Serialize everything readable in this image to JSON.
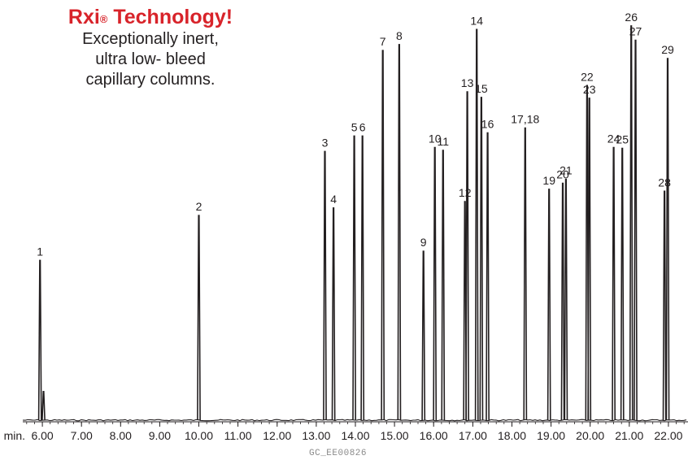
{
  "header": {
    "brand": "Rxi",
    "brand_mark": "®",
    "brand_suffix": " Technology!",
    "tagline_lines": [
      "Exceptionally inert,",
      "ultra low- bleed",
      "capillary columns."
    ]
  },
  "footer": {
    "code": "GC_EE00826"
  },
  "colors": {
    "brand": "#d8232a",
    "trace": "#231f20"
  },
  "chart_data": {
    "type": "line",
    "title": "",
    "xlabel": "",
    "ylabel": "",
    "x_unit_label": "min.",
    "xlim": [
      5.5,
      22.5
    ],
    "ylim": [
      0,
      100
    ],
    "x_ticks": [
      6.0,
      7.0,
      8.0,
      9.0,
      10.0,
      11.0,
      12.0,
      13.0,
      14.0,
      15.0,
      16.0,
      17.0,
      18.0,
      19.0,
      20.0,
      21.0,
      22.0
    ],
    "x_tick_labels": [
      "6.00",
      "7.00",
      "8.00",
      "9.00",
      "10.00",
      "11.00",
      "12.00",
      "13.00",
      "14.00",
      "15.00",
      "16.00",
      "17.00",
      "18.00",
      "19.00",
      "20.00",
      "21.00",
      "22.00"
    ],
    "grid": false,
    "series": [
      {
        "peaks": [
          {
            "label": "1",
            "x": 5.94,
            "y": 40.2
          },
          {
            "label": "",
            "x": 6.03,
            "y": 7.2
          },
          {
            "label": "2",
            "x": 10.0,
            "y": 51.5
          },
          {
            "label": "3",
            "x": 13.22,
            "y": 67.6
          },
          {
            "label": "4",
            "x": 13.44,
            "y": 53.4
          },
          {
            "label": "5",
            "x": 13.97,
            "y": 71.5
          },
          {
            "label": "6",
            "x": 14.18,
            "y": 71.5
          },
          {
            "label": "7",
            "x": 14.7,
            "y": 93.0
          },
          {
            "label": "8",
            "x": 15.12,
            "y": 94.5
          },
          {
            "label": "9",
            "x": 15.74,
            "y": 42.5
          },
          {
            "label": "10",
            "x": 16.03,
            "y": 68.6
          },
          {
            "label": "11",
            "x": 16.24,
            "y": 67.9
          },
          {
            "label": "12",
            "x": 16.8,
            "y": 55.0
          },
          {
            "label": "13",
            "x": 16.86,
            "y": 82.6
          },
          {
            "label": "14",
            "x": 17.1,
            "y": 98.3
          },
          {
            "label": "15",
            "x": 17.22,
            "y": 81.2
          },
          {
            "label": "16",
            "x": 17.38,
            "y": 72.3
          },
          {
            "label": "17,18",
            "x": 18.34,
            "y": 73.5
          },
          {
            "label": "19",
            "x": 18.95,
            "y": 58.1
          },
          {
            "label": "20",
            "x": 19.3,
            "y": 59.6
          },
          {
            "label": "21",
            "x": 19.38,
            "y": 60.6
          },
          {
            "label": "22",
            "x": 19.92,
            "y": 84.2
          },
          {
            "label": "23",
            "x": 19.98,
            "y": 81.0
          },
          {
            "label": "24",
            "x": 20.6,
            "y": 68.6
          },
          {
            "label": "25",
            "x": 20.82,
            "y": 68.4
          },
          {
            "label": "26",
            "x": 21.05,
            "y": 99.2
          },
          {
            "label": "27",
            "x": 21.16,
            "y": 95.6
          },
          {
            "label": "28",
            "x": 21.9,
            "y": 57.6
          },
          {
            "label": "29",
            "x": 21.98,
            "y": 91.0
          }
        ]
      }
    ]
  }
}
